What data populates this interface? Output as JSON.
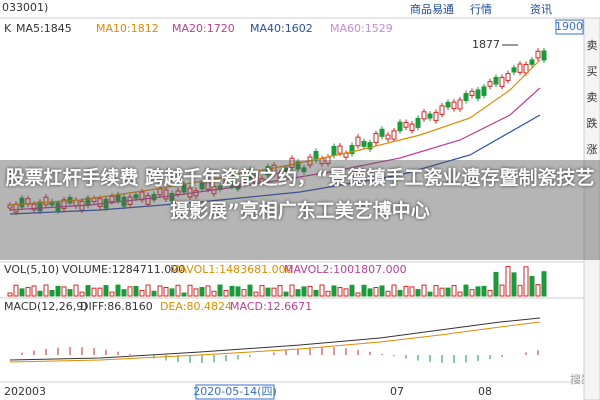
{
  "header": {
    "code": "033001)",
    "period": "K",
    "ma": [
      "MA5:1845",
      "MA10:1812",
      "MA20:1720",
      "MA40:1602",
      "MA60:1529"
    ],
    "menu": [
      "商品易通",
      "行情",
      "资讯"
    ]
  },
  "price_panel": {
    "high_label": "1877",
    "price_box": "1900"
  },
  "side_buttons": [
    "卖",
    "买",
    "卖",
    "跌",
    "涨"
  ],
  "headline": "股票杠杆手续费 跨越千年瓷韵之约，“景德镇手工瓷业遗存暨制瓷技艺摄影展”亮相广东工美艺博中心",
  "volume_panel": {
    "labels": [
      "VOL(5,10)",
      "VOLUME:1284711.000",
      "MAVOL1:1483681.000",
      "MAVOL2:1001807.000"
    ]
  },
  "macd_panel": {
    "labels": [
      "MACD(12,26,9)",
      "DIFF:86.8160",
      "DEA:80.4824",
      "MACD:12.6671"
    ]
  },
  "date_axis": [
    "202003",
    "2020-05-14(四)",
    "07",
    "08"
  ],
  "watermark": "搜狐"
}
